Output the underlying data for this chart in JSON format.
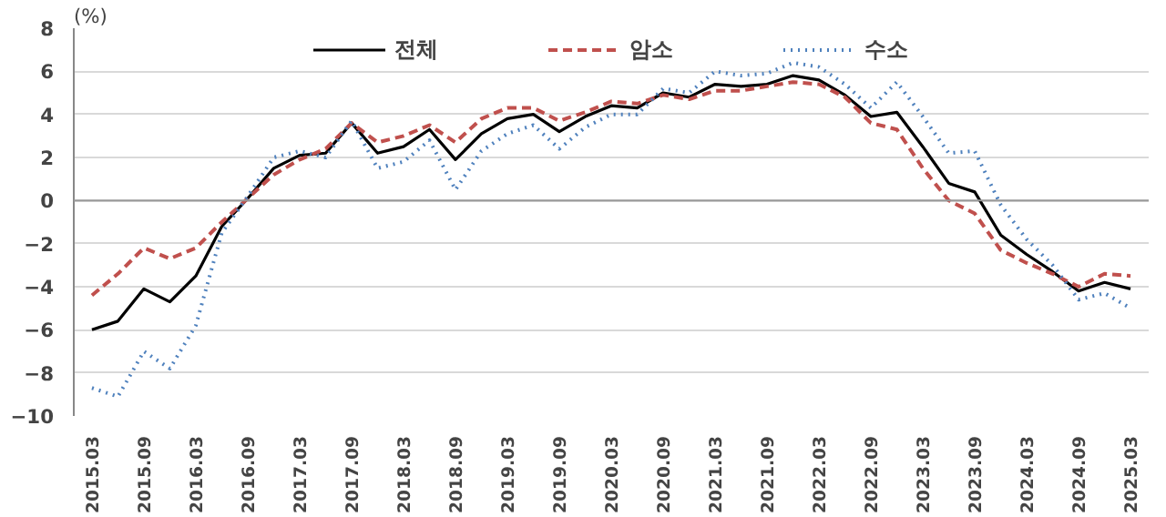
{
  "chart_data": {
    "type": "line",
    "ylabel": "(%)",
    "categories": [
      "2015.03",
      null,
      "2015.09",
      null,
      "2016.03",
      null,
      "2016.09",
      null,
      "2017.03",
      null,
      "2017.09",
      null,
      "2018.03",
      null,
      "2018.09",
      null,
      "2019.03",
      null,
      "2019.09",
      null,
      "2020.03",
      null,
      "2020.09",
      null,
      "2021.03",
      null,
      "2021.09",
      null,
      "2022.03",
      null,
      "2022.09",
      null,
      "2023.03",
      null,
      "2023.09",
      null,
      "2024.03",
      null,
      "2024.09",
      null,
      "2025.03"
    ],
    "series": [
      {
        "name": "전체",
        "color": "#000000",
        "line_style": "solid",
        "values": [
          -6.0,
          -5.6,
          -4.1,
          -4.7,
          -3.5,
          -1.2,
          0.1,
          1.5,
          2.1,
          2.2,
          3.6,
          2.2,
          2.5,
          3.3,
          1.9,
          3.1,
          3.8,
          4.0,
          3.2,
          3.9,
          4.4,
          4.3,
          5.0,
          4.8,
          5.4,
          5.3,
          5.4,
          5.8,
          5.6,
          4.9,
          3.9,
          4.1,
          2.5,
          0.8,
          0.4,
          -1.6,
          -2.5,
          -3.3,
          -4.2,
          -3.8,
          -4.1
        ]
      },
      {
        "name": "암소",
        "color": "#c0504d",
        "line_style": "dashed",
        "values": [
          -4.4,
          -3.4,
          -2.2,
          -2.7,
          -2.2,
          -1.0,
          0.1,
          1.2,
          1.9,
          2.4,
          3.6,
          2.7,
          3.0,
          3.5,
          2.7,
          3.8,
          4.3,
          4.3,
          3.7,
          4.1,
          4.6,
          4.5,
          4.9,
          4.7,
          5.1,
          5.1,
          5.3,
          5.5,
          5.4,
          4.8,
          3.6,
          3.3,
          1.5,
          0.0,
          -0.6,
          -2.3,
          -2.9,
          -3.4,
          -4.0,
          -3.4,
          -3.5
        ]
      },
      {
        "name": "수소",
        "color": "#4f81bd",
        "line_style": "dotted",
        "values": [
          -8.7,
          -9.1,
          -7.0,
          -7.8,
          -5.8,
          -1.5,
          0.2,
          2.0,
          2.3,
          2.0,
          3.7,
          1.5,
          1.8,
          2.8,
          0.5,
          2.3,
          3.1,
          3.5,
          2.4,
          3.4,
          4.0,
          4.0,
          5.2,
          5.0,
          6.0,
          5.8,
          5.9,
          6.4,
          6.2,
          5.4,
          4.3,
          5.5,
          3.9,
          2.2,
          2.3,
          -0.2,
          -1.8,
          -3.0,
          -4.6,
          -4.3,
          -5.0
        ]
      }
    ],
    "ylim": [
      -10,
      8
    ],
    "yticks": [
      -10,
      -8,
      -6,
      -4,
      -2,
      0,
      2,
      4,
      6,
      8
    ],
    "grid": "y",
    "legend": "top"
  }
}
